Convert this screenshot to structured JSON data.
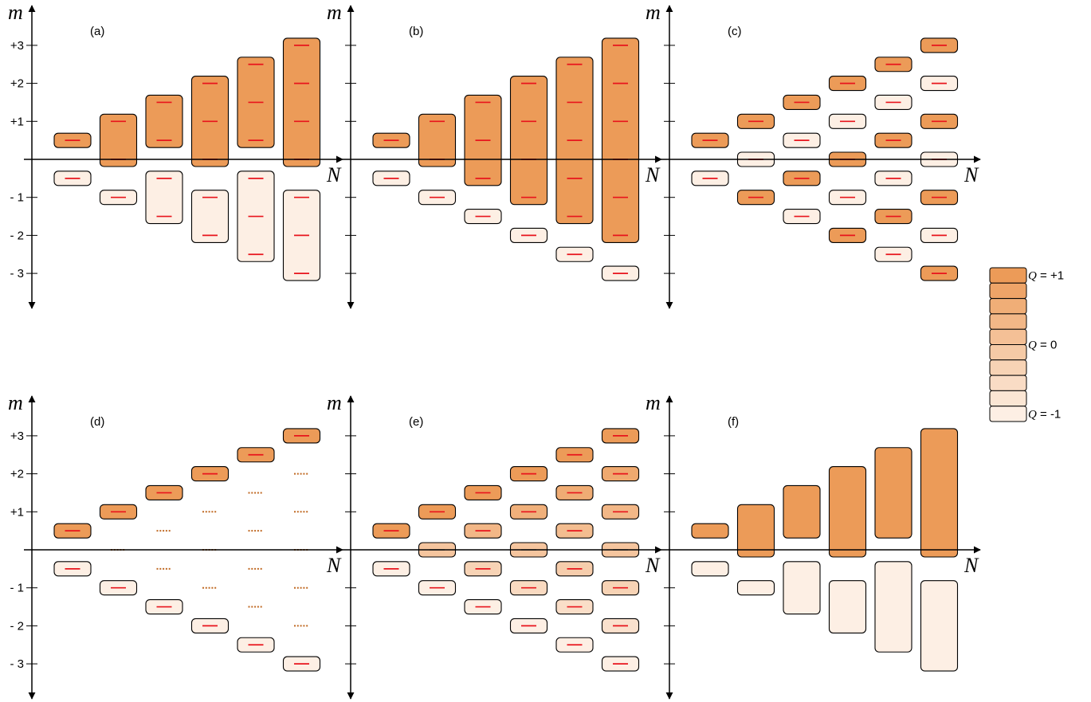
{
  "axes": {
    "y_symbol": "m",
    "x_symbol": "N",
    "y_tick_labels": [
      "+3",
      "+2",
      "+1",
      "- 1",
      "- 2",
      "- 3"
    ]
  },
  "colors": {
    "q_plus": "#ec9b58",
    "q_minus": "#fdefe4",
    "level": "#e8141c",
    "dotted": "#c06a24",
    "box_stroke": "#000000"
  },
  "panels": [
    {
      "id": "a",
      "label": "(a)",
      "kind": "blocks",
      "levels": "solid",
      "zero_splits": false,
      "columns": [
        {
          "boxes": [
            {
              "range": [
                0.5,
                0.5
              ],
              "q": 1
            },
            {
              "range": [
                -0.5,
                -0.5
              ],
              "q": -1
            }
          ]
        },
        {
          "boxes": [
            {
              "range": [
                0,
                1
              ],
              "q": 1
            },
            {
              "range": [
                -1,
                -1
              ],
              "q": -1
            }
          ]
        },
        {
          "boxes": [
            {
              "range": [
                0.5,
                1.5
              ],
              "q": 1
            },
            {
              "range": [
                -1.5,
                -0.5
              ],
              "q": -1
            }
          ]
        },
        {
          "boxes": [
            {
              "range": [
                0,
                2
              ],
              "q": 1
            },
            {
              "range": [
                -2,
                -1
              ],
              "q": -1
            }
          ]
        },
        {
          "boxes": [
            {
              "range": [
                0.5,
                2.5
              ],
              "q": 1
            },
            {
              "range": [
                -2.5,
                -0.5
              ],
              "q": -1
            }
          ]
        },
        {
          "boxes": [
            {
              "range": [
                0,
                3
              ],
              "q": 1
            },
            {
              "range": [
                -3,
                -1
              ],
              "q": -1
            }
          ]
        }
      ]
    },
    {
      "id": "b",
      "label": "(b)",
      "kind": "blocks",
      "levels": "solid",
      "zero_splits": false,
      "columns": [
        {
          "boxes": [
            {
              "range": [
                0.5,
                0.5
              ],
              "q": 1
            },
            {
              "range": [
                -0.5,
                -0.5
              ],
              "q": -1
            }
          ]
        },
        {
          "boxes": [
            {
              "range": [
                0,
                1
              ],
              "q": 1
            },
            {
              "range": [
                -1,
                -1
              ],
              "q": -1
            }
          ]
        },
        {
          "boxes": [
            {
              "range": [
                -0.5,
                1.5
              ],
              "q": 1
            },
            {
              "range": [
                -1.5,
                -1.5
              ],
              "q": -1
            }
          ]
        },
        {
          "boxes": [
            {
              "range": [
                -1,
                2
              ],
              "q": 1
            },
            {
              "range": [
                -2,
                -2
              ],
              "q": -1
            }
          ]
        },
        {
          "boxes": [
            {
              "range": [
                -1.5,
                2.5
              ],
              "q": 1
            },
            {
              "range": [
                -2.5,
                -2.5
              ],
              "q": -1
            }
          ]
        },
        {
          "boxes": [
            {
              "range": [
                -2,
                3
              ],
              "q": 1
            },
            {
              "range": [
                -3,
                -3
              ],
              "q": -1
            }
          ]
        }
      ]
    },
    {
      "id": "c",
      "label": "(c)",
      "kind": "alternating",
      "levels": "solid",
      "zero_splits": false
    },
    {
      "id": "d",
      "label": "(d)",
      "kind": "extremes",
      "levels": "solid",
      "zero_splits": false
    },
    {
      "id": "e",
      "label": "(e)",
      "kind": "gradient",
      "levels": "solid",
      "zero_splits": true
    },
    {
      "id": "f",
      "label": "(f)",
      "kind": "blocks",
      "levels": "none",
      "zero_splits": false,
      "columns": [
        {
          "boxes": [
            {
              "range": [
                0.5,
                0.5
              ],
              "q": 1
            },
            {
              "range": [
                -0.5,
                -0.5
              ],
              "q": -1
            }
          ]
        },
        {
          "boxes": [
            {
              "range": [
                0,
                1
              ],
              "q": 1
            },
            {
              "range": [
                -1,
                -1
              ],
              "q": -1
            }
          ]
        },
        {
          "boxes": [
            {
              "range": [
                0.5,
                1.5
              ],
              "q": 1
            },
            {
              "range": [
                -1.5,
                -0.5
              ],
              "q": -1
            }
          ]
        },
        {
          "boxes": [
            {
              "range": [
                0,
                2
              ],
              "q": 1
            },
            {
              "range": [
                -2,
                -1
              ],
              "q": -1
            }
          ]
        },
        {
          "boxes": [
            {
              "range": [
                0.5,
                2.5
              ],
              "q": 1
            },
            {
              "range": [
                -2.5,
                -0.5
              ],
              "q": -1
            }
          ]
        },
        {
          "boxes": [
            {
              "range": [
                0,
                3
              ],
              "q": 1
            },
            {
              "range": [
                -3,
                -1
              ],
              "q": -1
            }
          ]
        }
      ]
    }
  ],
  "legend": {
    "symbol": "Q",
    "steps": 10,
    "labels": [
      {
        "step": 0,
        "text": " = +1"
      },
      {
        "step": 4.5,
        "text": " = 0"
      },
      {
        "step": 9,
        "text": " = -1"
      }
    ]
  }
}
